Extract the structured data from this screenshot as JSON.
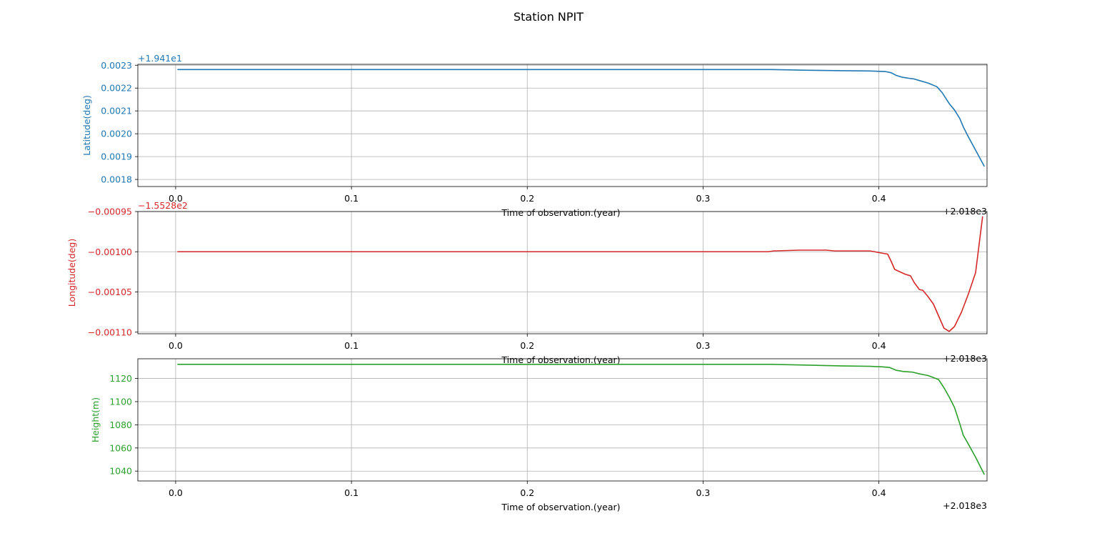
{
  "chart_data": {
    "title": "Station NPIT",
    "type": "line",
    "panels": [
      {
        "name": "latitude",
        "type": "line",
        "ylabel": "Latitude(deg)",
        "xlabel": "Time of observation.(year)",
        "color": "#1f77b4",
        "y_offset_label": "+1.941e1",
        "x_offset_label": "+2.018e3",
        "xlim": [
          -0.0215,
          0.4615
        ],
        "ylim": [
          0.001769,
          0.002304
        ],
        "xticks": [
          "0.0",
          "0.1",
          "0.2",
          "0.3",
          "0.4"
        ],
        "yticks": [
          "0.0018",
          "0.0019",
          "0.0020",
          "0.0021",
          "0.0022",
          "0.0023"
        ],
        "grid": true,
        "x": [
          0.001,
          0.05,
          0.1,
          0.15,
          0.2,
          0.25,
          0.3,
          0.339,
          0.36,
          0.38,
          0.395,
          0.404,
          0.407,
          0.41,
          0.413,
          0.417,
          0.42,
          0.423,
          0.428,
          0.433,
          0.436,
          0.44,
          0.443,
          0.446,
          0.448,
          0.451,
          0.455,
          0.46
        ],
        "y": [
          0.002281,
          0.002281,
          0.002281,
          0.002281,
          0.002281,
          0.002281,
          0.002281,
          0.002281,
          0.002278,
          0.002276,
          0.002275,
          0.002272,
          0.002267,
          0.002255,
          0.002248,
          0.002243,
          0.00224,
          0.002233,
          0.002222,
          0.002206,
          0.00218,
          0.002132,
          0.002104,
          0.002067,
          0.00203,
          0.001985,
          0.001928,
          0.001857
        ]
      },
      {
        "name": "longitude",
        "type": "line",
        "ylabel": "Longitude(deg)",
        "xlabel": "Time of observation.(year)",
        "color": "#d62728",
        "y_offset_label": "−1.5528e2",
        "x_offset_label": "+2.018e3",
        "xlim": [
          -0.0215,
          0.4615
        ],
        "ylim": [
          -0.001102,
          -0.00095
        ],
        "xticks": [
          "0.0",
          "0.1",
          "0.2",
          "0.3",
          "0.4"
        ],
        "yticks": [
          "−0.00095",
          "−0.00100",
          "−0.00105",
          "−0.00110"
        ],
        "ytick_values": [
          -0.00095,
          -0.001,
          -0.00105,
          -0.0011
        ],
        "grid": true,
        "x": [
          0.001,
          0.05,
          0.1,
          0.15,
          0.2,
          0.25,
          0.3,
          0.337,
          0.34,
          0.355,
          0.37,
          0.375,
          0.385,
          0.395,
          0.4,
          0.405,
          0.407,
          0.409,
          0.412,
          0.415,
          0.418,
          0.42,
          0.423,
          0.425,
          0.428,
          0.431,
          0.434,
          0.437,
          0.44,
          0.443,
          0.447,
          0.451,
          0.455,
          0.459
        ],
        "y": [
          -0.001,
          -0.001,
          -0.001,
          -0.001,
          -0.001,
          -0.001,
          -0.001,
          -0.001,
          -0.000999,
          -0.000998,
          -0.000998,
          -0.000999,
          -0.000999,
          -0.000999,
          -0.001001,
          -0.001003,
          -0.001012,
          -0.001022,
          -0.001025,
          -0.001028,
          -0.00103,
          -0.001038,
          -0.001047,
          -0.001048,
          -0.001056,
          -0.001065,
          -0.00108,
          -0.001095,
          -0.001099,
          -0.001093,
          -0.001075,
          -0.001052,
          -0.001026,
          -0.000956
        ]
      },
      {
        "name": "height",
        "type": "line",
        "ylabel": "Height(m)",
        "xlabel": "Time of observation.(year)",
        "color": "#2ca02c",
        "x_offset_label": "+2.018e3",
        "xlim": [
          -0.0215,
          0.4615
        ],
        "ylim": [
          1031.5,
          1137.0
        ],
        "xticks": [
          "0.0",
          "0.1",
          "0.2",
          "0.3",
          "0.4"
        ],
        "yticks": [
          "1040",
          "1060",
          "1080",
          "1100",
          "1120"
        ],
        "ytick_values": [
          1040,
          1060,
          1080,
          1100,
          1120
        ],
        "grid": true,
        "x": [
          0.001,
          0.05,
          0.1,
          0.15,
          0.2,
          0.25,
          0.3,
          0.339,
          0.36,
          0.38,
          0.395,
          0.402,
          0.406,
          0.41,
          0.414,
          0.419,
          0.423,
          0.428,
          0.434,
          0.437,
          0.44,
          0.443,
          0.446,
          0.448,
          0.451,
          0.455,
          0.46
        ],
        "y": [
          1132.2,
          1132.2,
          1132.2,
          1132.2,
          1132.2,
          1132.2,
          1132.2,
          1132.2,
          1131.5,
          1130.8,
          1130.5,
          1130.0,
          1129.5,
          1127.0,
          1126.0,
          1125.5,
          1124.0,
          1122.5,
          1119.0,
          1112.0,
          1104.0,
          1095.0,
          1081.0,
          1071.0,
          1063.0,
          1052.0,
          1037.0
        ]
      }
    ]
  }
}
